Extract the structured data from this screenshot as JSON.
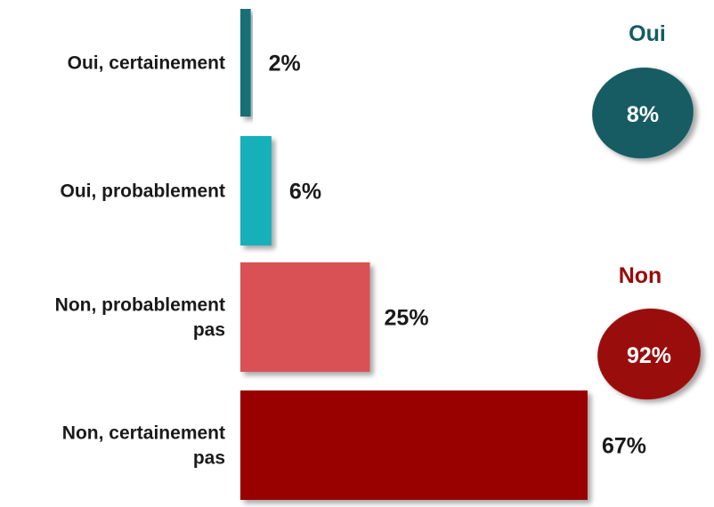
{
  "chart_data": {
    "type": "bar",
    "orientation": "horizontal",
    "categories": [
      [
        "Oui, certainement"
      ],
      [
        "Oui, probablement"
      ],
      [
        "Non, probablement",
        "pas"
      ],
      [
        "Non, certainement",
        "pas"
      ]
    ],
    "values": [
      2,
      6,
      25,
      67
    ],
    "value_labels": [
      "2%",
      "6%",
      "25%",
      "67%"
    ],
    "bar_colors": [
      "#156f76",
      "#14b0bb",
      "#d95154",
      "#990000"
    ],
    "xlim": [
      0,
      67
    ],
    "grid": false,
    "legend": "none"
  },
  "summary": [
    {
      "title": "Oui",
      "value": "8%",
      "color": "#135c62"
    },
    {
      "title": "Non",
      "value": "92%",
      "color": "#9a0a0a"
    }
  ]
}
